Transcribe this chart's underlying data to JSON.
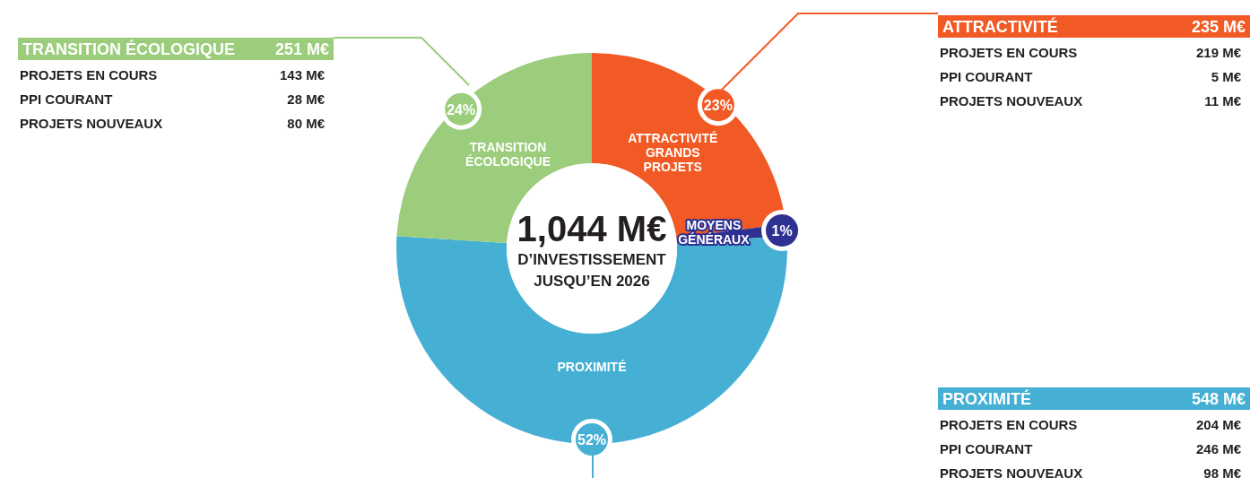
{
  "chart_data": {
    "type": "donut",
    "title": "1,044 M€",
    "subtitle": "D’INVESTISSEMENT JUSQU’EN 2026",
    "categories": [
      "ATTRACTIVITÉ GRANDS PROJETS",
      "MOYENS GÉNÉRAUX",
      "PROXIMITÉ",
      "TRANSITION ÉCOLOGIQUE"
    ],
    "values": [
      23,
      1,
      52,
      24
    ],
    "colors": [
      "#f15a24",
      "#2e3192",
      "#45afd4",
      "#9bcd7c"
    ],
    "value_labels": [
      "23%",
      "1%",
      "52%",
      "24%"
    ],
    "annotations": [
      "TRANSITION ÉCOLOGIQUE",
      "251 M€",
      "PROJETS EN COURS",
      "143 M€",
      "PPI COURANT",
      "28 M€",
      "PROJETS NOUVEAUX",
      "80 M€",
      "ATTRACTIVITÉ",
      "235 M€",
      "PROJETS EN COURS",
      "219 M€",
      "PPI COURANT",
      "5 M€",
      "PROJETS NOUVEAUX",
      "11 M€",
      "PROXIMITÉ",
      "548 M€",
      "PROJETS EN COURS",
      "204 M€",
      "PPI COURANT",
      "246 M€",
      "PROJETS NOUVEAUX",
      "98 M€"
    ]
  }
}
